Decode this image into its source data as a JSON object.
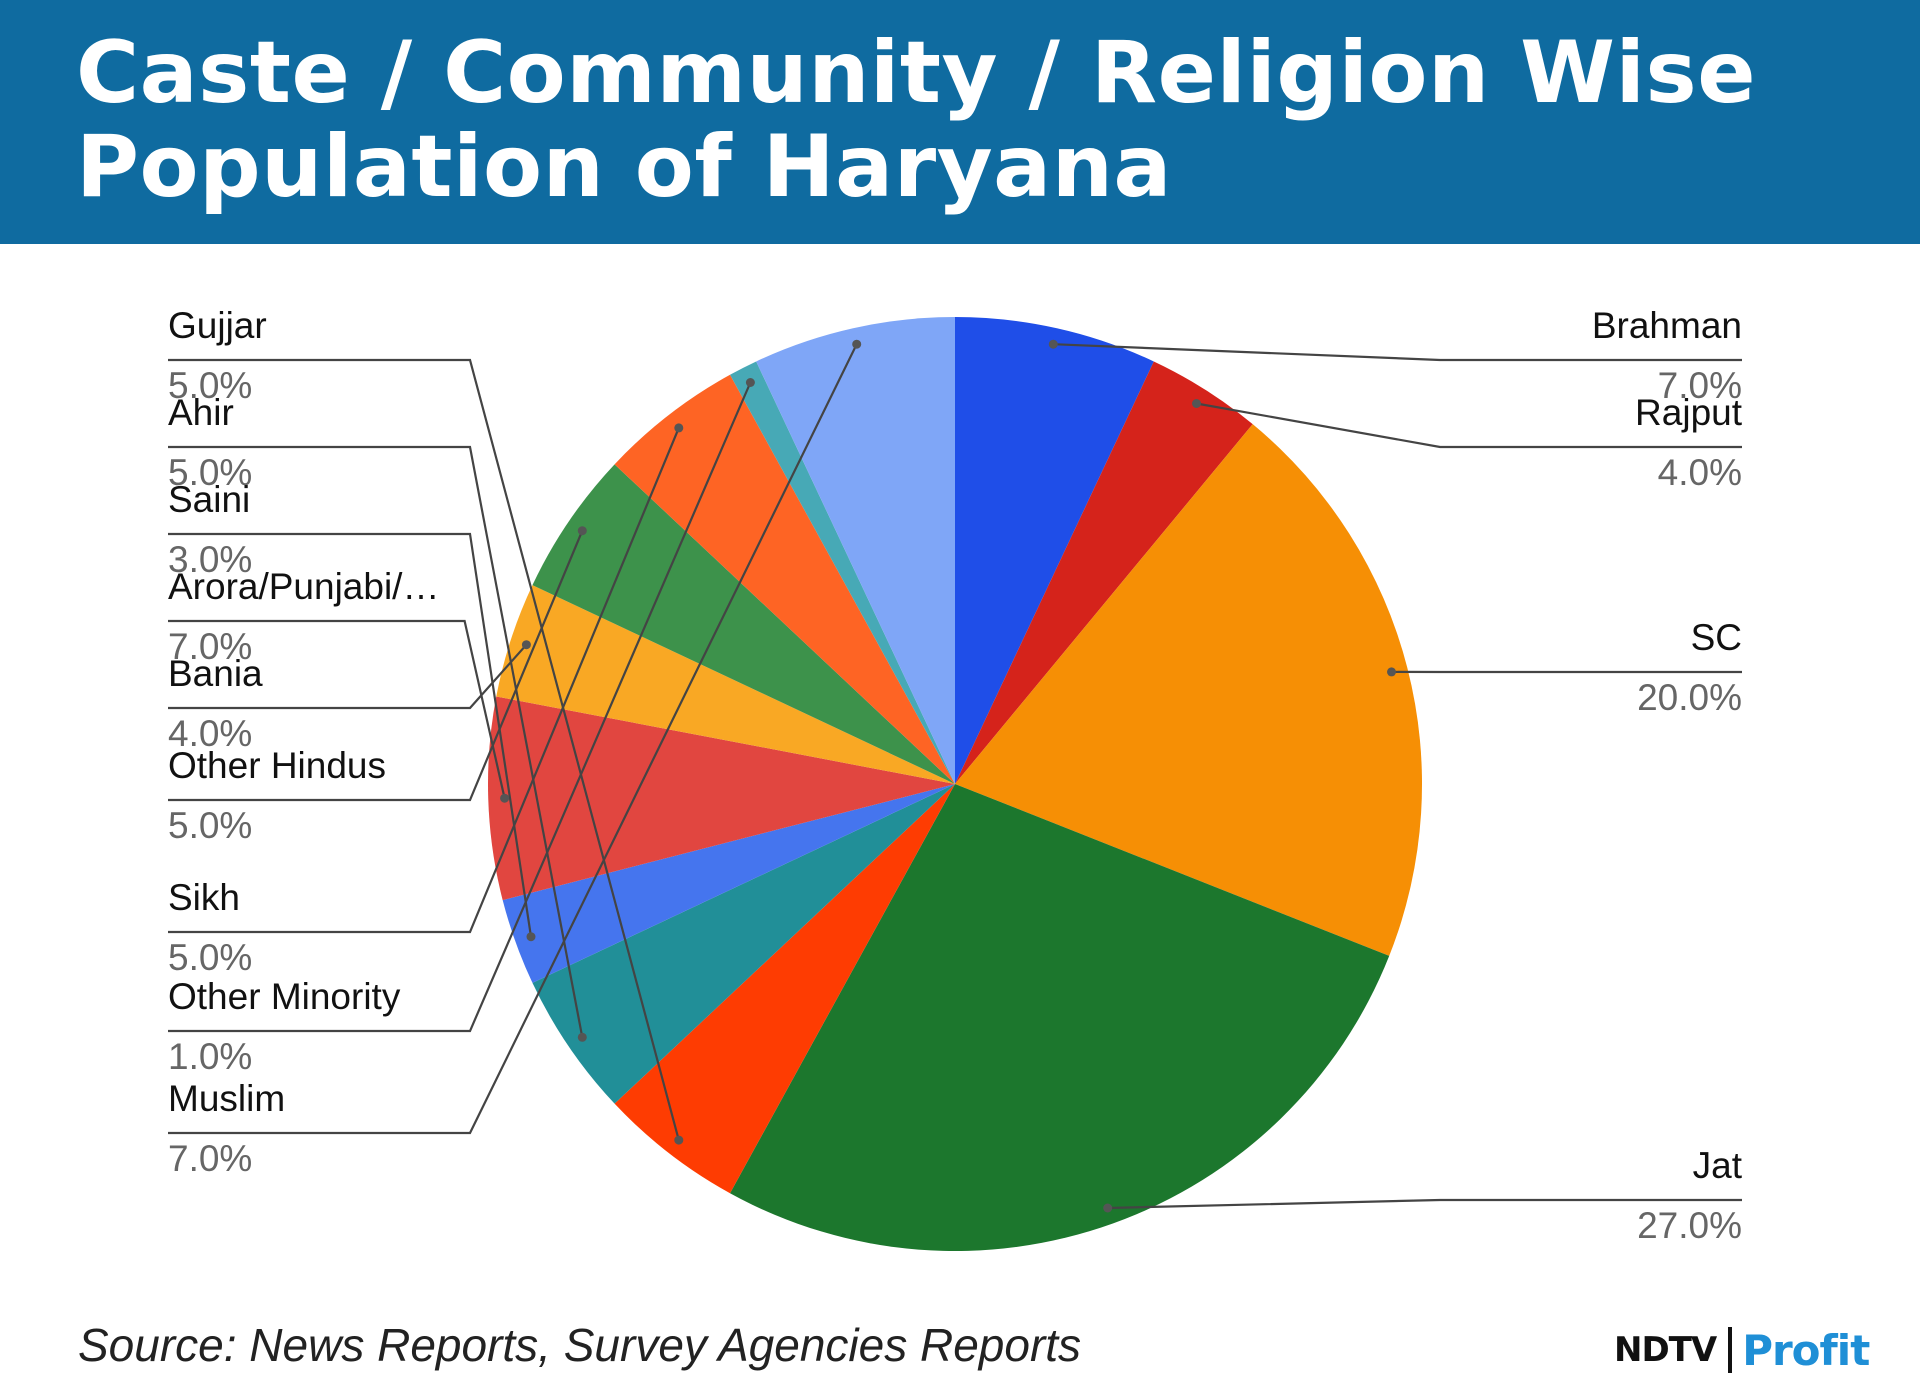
{
  "header": {
    "title": "Caste / Community / Religion Wise Population of Haryana"
  },
  "chart_data": {
    "type": "pie",
    "title": "Caste / Community / Religion Wise Population of Haryana",
    "slices": [
      {
        "label": "Brahman",
        "value": 7.0,
        "display": "7.0%",
        "color": "#1f4ee8"
      },
      {
        "label": "Rajput",
        "value": 4.0,
        "display": "4.0%",
        "color": "#d5231b"
      },
      {
        "label": "SC",
        "value": 20.0,
        "display": "20.0%",
        "color": "#f68f05"
      },
      {
        "label": "Jat",
        "value": 27.0,
        "display": "27.0%",
        "color": "#1c772d"
      },
      {
        "label": "Gujjar",
        "value": 5.0,
        "display": "5.0%",
        "color": "#fe3c02"
      },
      {
        "label": "Ahir",
        "value": 5.0,
        "display": "5.0%",
        "color": "#218f98"
      },
      {
        "label": "Saini",
        "value": 3.0,
        "display": "3.0%",
        "color": "#4575ee"
      },
      {
        "label": "Arora/Punjabi/…",
        "value": 7.0,
        "display": "7.0%",
        "color": "#e14640"
      },
      {
        "label": "Bania",
        "value": 4.0,
        "display": "4.0%",
        "color": "#f9a824"
      },
      {
        "label": "Other Hindus",
        "value": 5.0,
        "display": "5.0%",
        "color": "#3d924b"
      },
      {
        "label": "Sikh",
        "value": 5.0,
        "display": "5.0%",
        "color": "#fe6424"
      },
      {
        "label": "Other Minority",
        "value": 1.0,
        "display": "1.0%",
        "color": "#47a9b6"
      },
      {
        "label": "Muslim",
        "value": 7.0,
        "display": "7.0%",
        "color": "#7fa6f7"
      }
    ]
  },
  "footer": {
    "source": "Source: News Reports, Survey Agencies Reports",
    "logo_ndtv": "NDTV",
    "logo_profit": "Profit"
  }
}
